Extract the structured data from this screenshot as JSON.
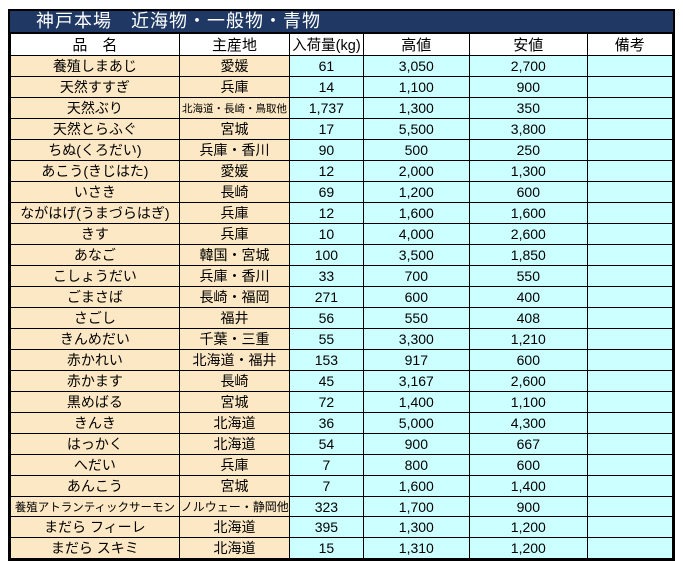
{
  "title": "神戸本場　近海物・一般物・青物",
  "columns": [
    "品　名",
    "主産地",
    "入荷量(kg)",
    "高値",
    "安値",
    "備考"
  ],
  "rows": [
    [
      "養殖しまあじ",
      "愛媛",
      "61",
      "3,050",
      "2,700",
      ""
    ],
    [
      "天然すすぎ",
      "兵庫",
      "14",
      "1,100",
      "900",
      ""
    ],
    [
      "天然ぶり",
      "北海道・長崎・鳥取他",
      "1,737",
      "1,300",
      "350",
      ""
    ],
    [
      "天然とらふぐ",
      "宮城",
      "17",
      "5,500",
      "3,800",
      ""
    ],
    [
      "ちぬ(くろだい)",
      "兵庫・香川",
      "90",
      "500",
      "250",
      ""
    ],
    [
      "あこう(きじはた)",
      "愛媛",
      "12",
      "2,000",
      "1,300",
      ""
    ],
    [
      "いさき",
      "長崎",
      "69",
      "1,200",
      "600",
      ""
    ],
    [
      "ながはげ(うまづらはぎ)",
      "兵庫",
      "12",
      "1,600",
      "1,600",
      ""
    ],
    [
      "きす",
      "兵庫",
      "10",
      "4,000",
      "2,600",
      ""
    ],
    [
      "あなご",
      "韓国・宮城",
      "100",
      "3,500",
      "1,850",
      ""
    ],
    [
      "こしょうだい",
      "兵庫・香川",
      "33",
      "700",
      "550",
      ""
    ],
    [
      "ごまさば",
      "長崎・福岡",
      "271",
      "600",
      "400",
      ""
    ],
    [
      "さごし",
      "福井",
      "56",
      "550",
      "408",
      ""
    ],
    [
      "きんめだい",
      "千葉・三重",
      "55",
      "3,300",
      "1,210",
      ""
    ],
    [
      "赤かれい",
      "北海道・福井",
      "153",
      "917",
      "600",
      ""
    ],
    [
      "赤かます",
      "長崎",
      "45",
      "3,167",
      "2,600",
      ""
    ],
    [
      "黒めばる",
      "宮城",
      "72",
      "1,400",
      "1,100",
      ""
    ],
    [
      "きんき",
      "北海道",
      "36",
      "5,000",
      "4,300",
      ""
    ],
    [
      "はっかく",
      "北海道",
      "54",
      "900",
      "667",
      ""
    ],
    [
      "へだい",
      "兵庫",
      "7",
      "800",
      "600",
      ""
    ],
    [
      "あんこう",
      "宮城",
      "7",
      "1,600",
      "1,400",
      ""
    ],
    [
      "養殖アトランティックサーモン",
      "ノルウェー・静岡他",
      "323",
      "1,700",
      "900",
      ""
    ],
    [
      "まだら フィーレ",
      "北海道",
      "395",
      "1,300",
      "1,200",
      ""
    ],
    [
      "まだら スキミ",
      "北海道",
      "15",
      "1,310",
      "1,200",
      ""
    ]
  ],
  "colors": {
    "title_bg": "#1F3864",
    "title_text": "#FFFFFF",
    "header_bg": "#FFFFFF",
    "name_bg": "#FCE8C4",
    "value_bg": "#CCFFFF",
    "grid": "#000000"
  }
}
